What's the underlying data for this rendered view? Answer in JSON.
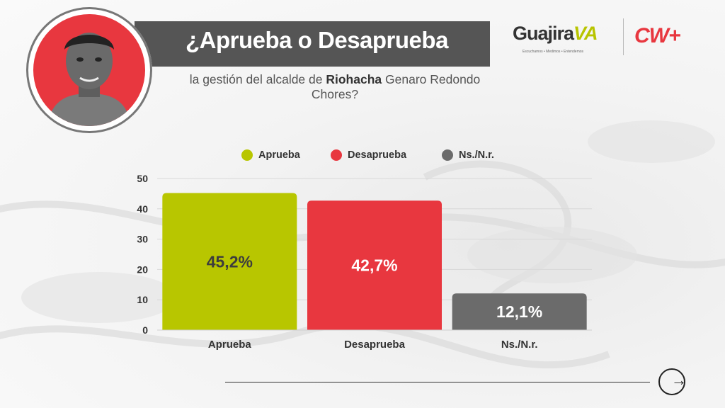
{
  "header": {
    "title": "¿Aprueba o Desaprueba",
    "subtitle_part1": "la gestión del alcalde de ",
    "subtitle_bold": "Riohacha",
    "subtitle_part2": " Genaro Redondo Chores?"
  },
  "brands": {
    "logo1_main": "Guajira",
    "logo1_accent": "VA",
    "logo1_tagline": "Escuchamos • Medimos • Entendemos",
    "logo2": "CW+"
  },
  "colors": {
    "aprueba": "#b8c600",
    "desaprueba": "#e8373f",
    "nsnr": "#6b6b6b",
    "title_bar": "#555555"
  },
  "chart_data": {
    "type": "bar",
    "title": "",
    "xlabel": "",
    "ylabel": "",
    "categories": [
      "Aprueba",
      "Desaprueba",
      "Ns./N.r."
    ],
    "values": [
      45.2,
      42.7,
      12.1
    ],
    "data_labels": [
      "45,2%",
      "42,7%",
      "12,1%"
    ],
    "ylim": [
      0,
      50
    ],
    "yticks": [
      0,
      10,
      20,
      30,
      40,
      50
    ],
    "legend": [
      "Aprueba",
      "Desaprueba",
      "Ns./N.r."
    ],
    "legend_position": "top",
    "grid": true
  }
}
